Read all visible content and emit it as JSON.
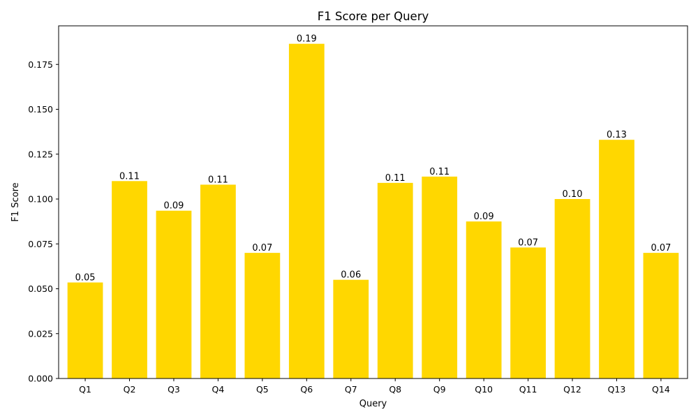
{
  "chart_data": {
    "type": "bar",
    "title": "F1 Score per Query",
    "xlabel": "Query",
    "ylabel": "F1 Score",
    "categories": [
      "Q1",
      "Q2",
      "Q3",
      "Q4",
      "Q5",
      "Q6",
      "Q7",
      "Q8",
      "Q9",
      "Q10",
      "Q11",
      "Q12",
      "Q13",
      "Q14"
    ],
    "values": [
      0.0535,
      0.11,
      0.0935,
      0.108,
      0.07,
      0.1865,
      0.055,
      0.109,
      0.1125,
      0.0875,
      0.073,
      0.1,
      0.133,
      0.07
    ],
    "data_labels": [
      "0.05",
      "0.11",
      "0.09",
      "0.11",
      "0.07",
      "0.19",
      "0.06",
      "0.11",
      "0.11",
      "0.09",
      "0.07",
      "0.10",
      "0.13",
      "0.07"
    ],
    "yticks": [
      0.0,
      0.025,
      0.05,
      0.075,
      0.1,
      0.125,
      0.15,
      0.175
    ],
    "ytick_labels": [
      "0.000",
      "0.025",
      "0.050",
      "0.075",
      "0.100",
      "0.125",
      "0.150",
      "0.175"
    ],
    "ylim": [
      0,
      0.1965
    ],
    "grid": false,
    "bar_color": "#FFD700"
  }
}
